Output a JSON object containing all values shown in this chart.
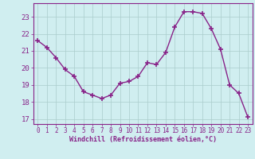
{
  "x": [
    0,
    1,
    2,
    3,
    4,
    5,
    6,
    7,
    8,
    9,
    10,
    11,
    12,
    13,
    14,
    15,
    16,
    17,
    18,
    19,
    20,
    21,
    22,
    23
  ],
  "y": [
    21.6,
    21.2,
    20.6,
    19.9,
    19.5,
    18.6,
    18.4,
    18.2,
    18.4,
    19.1,
    19.2,
    19.5,
    20.3,
    20.2,
    20.9,
    22.4,
    23.3,
    23.3,
    23.2,
    22.3,
    21.1,
    19.0,
    18.5,
    17.1
  ],
  "line_color": "#882288",
  "marker": "+",
  "markersize": 4,
  "markeredgewidth": 1.2,
  "bg_color": "#d0eef0",
  "grid_color": "#aacccc",
  "xlabel": "Windchill (Refroidissement éolien,°C)",
  "xlabel_color": "#882288",
  "tick_color": "#882288",
  "ylabel_ticks": [
    17,
    18,
    19,
    20,
    21,
    22,
    23
  ],
  "xlim": [
    -0.5,
    23.5
  ],
  "ylim": [
    16.7,
    23.8
  ],
  "linewidth": 1.0,
  "font_family": "monospace",
  "tick_fontsize": 5.5,
  "xlabel_fontsize": 6.0
}
